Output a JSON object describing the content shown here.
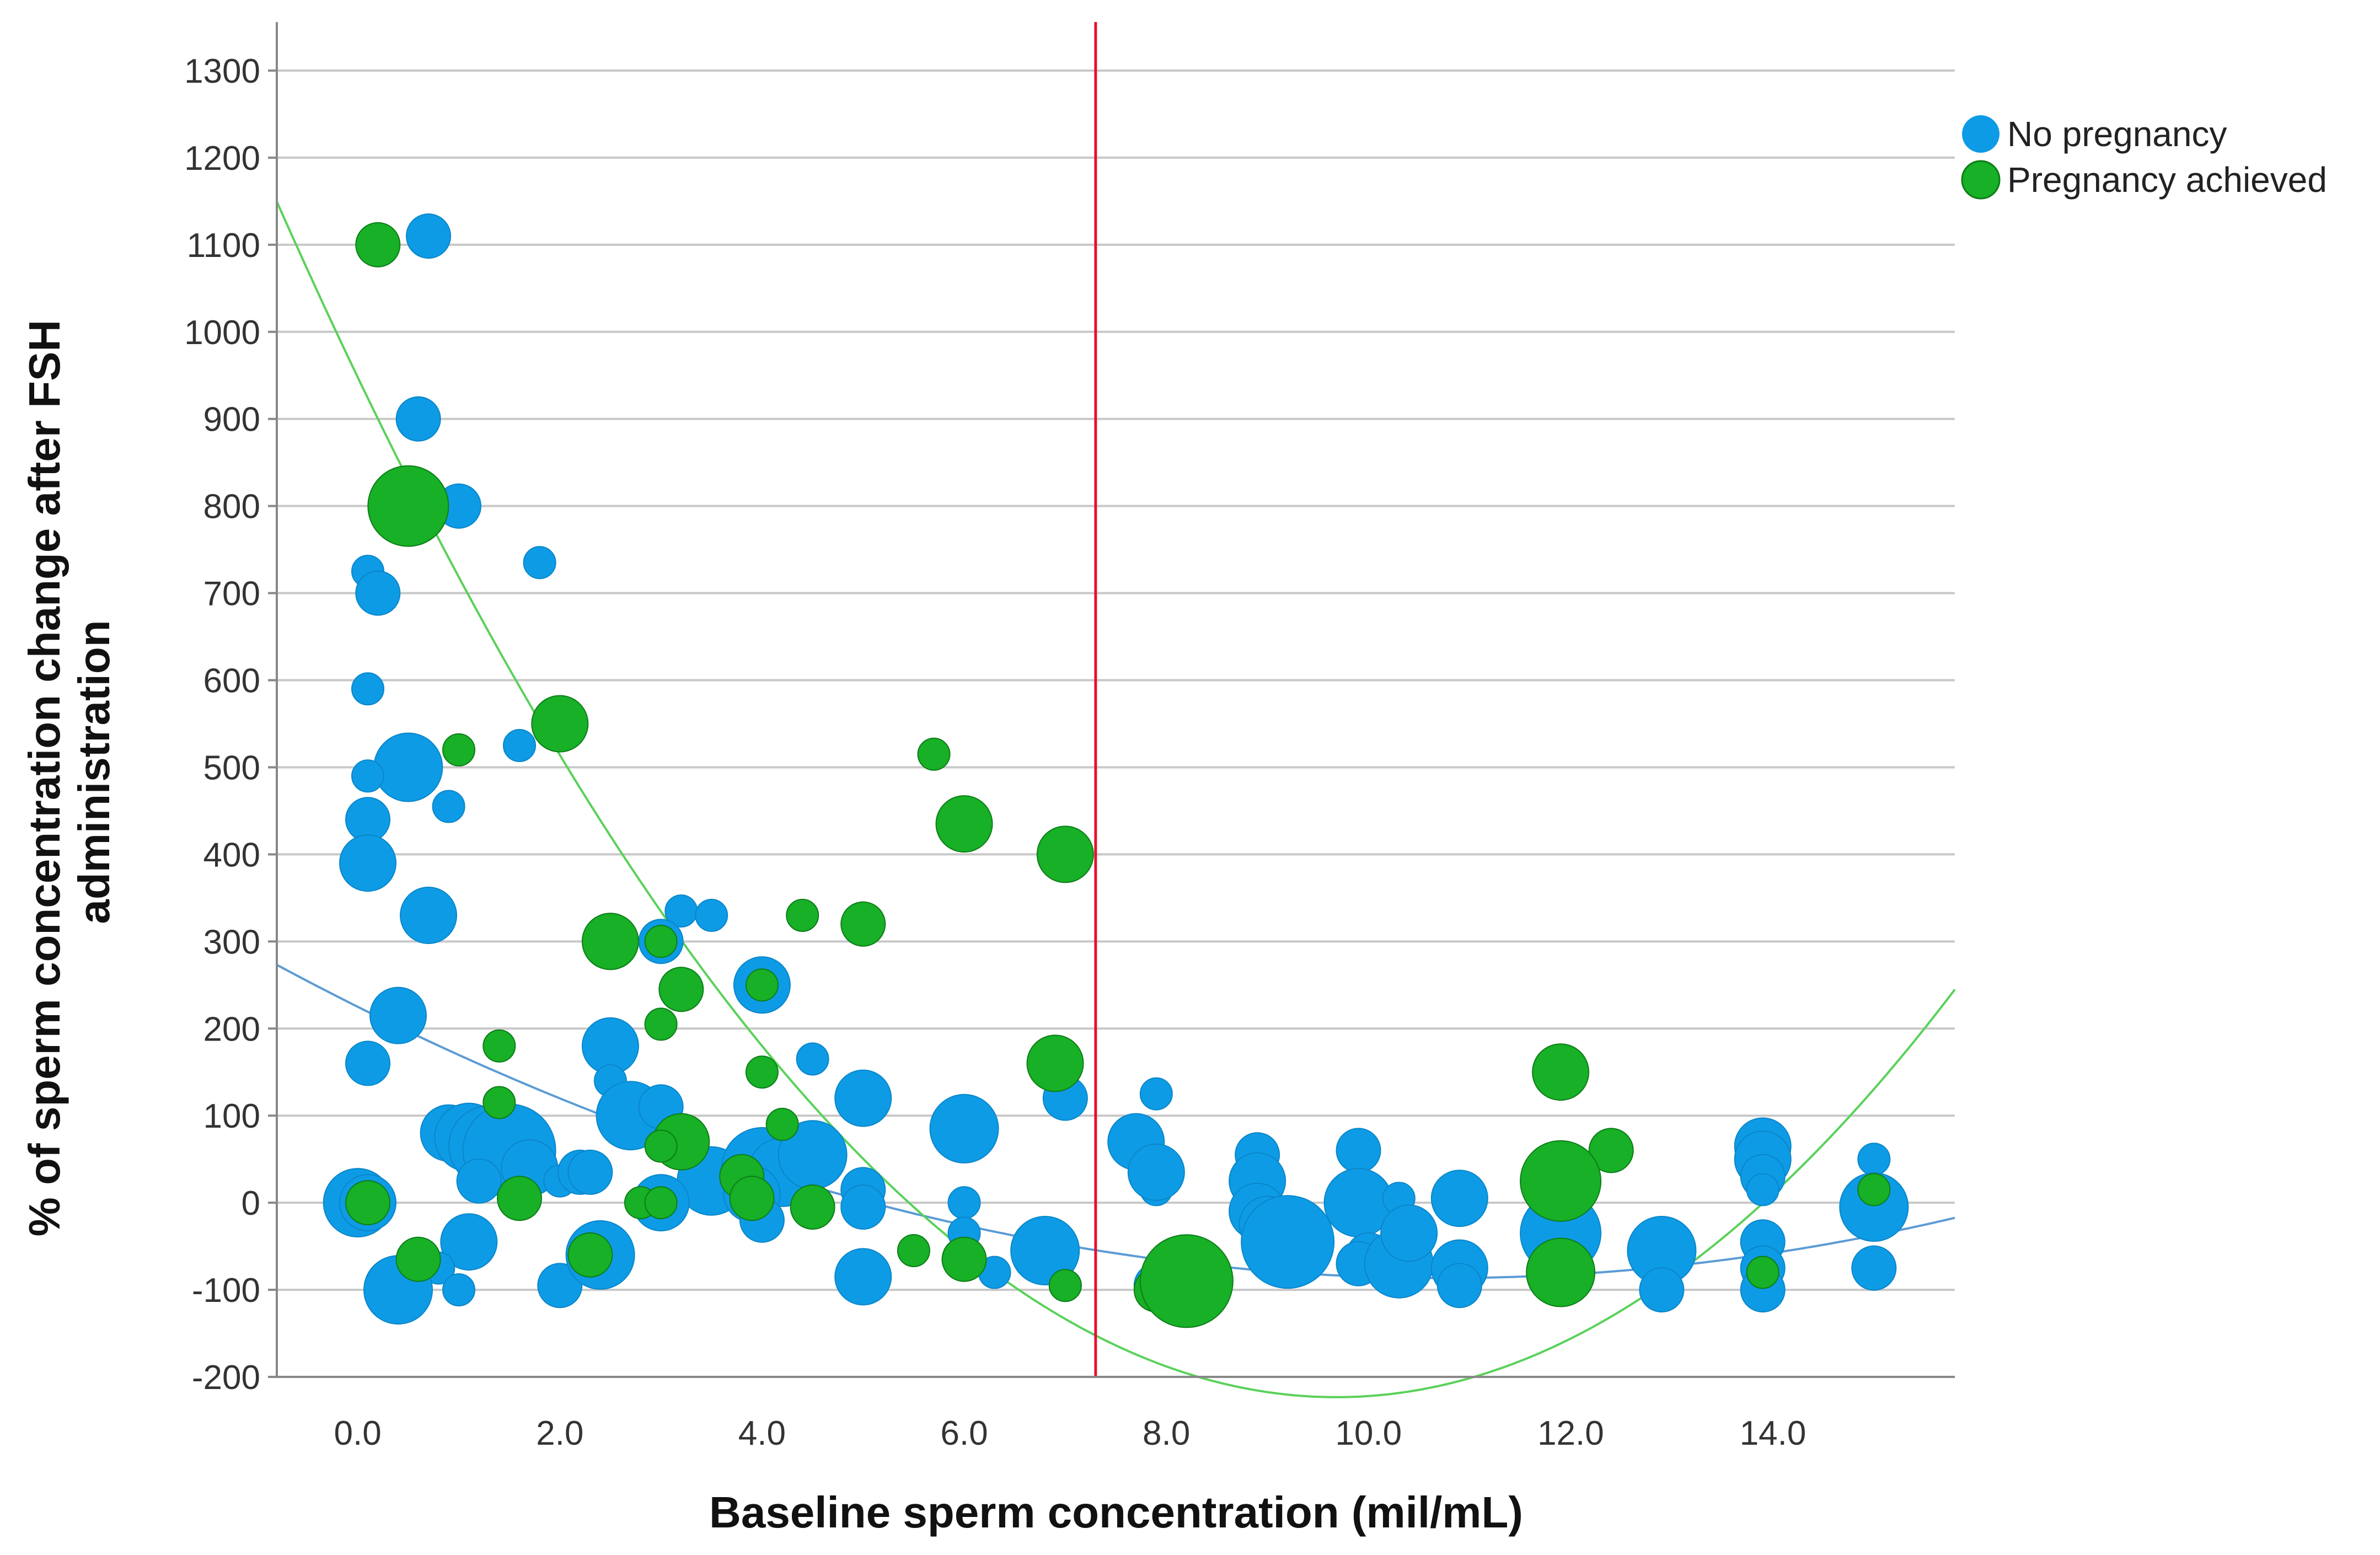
{
  "chart_data": {
    "type": "scatter",
    "title": "",
    "xlabel": "Baseline sperm concentration (mil/mL)",
    "ylabel_lines": [
      "% of sperm concentration change after FSH",
      "administration"
    ],
    "xlim": [
      -0.8,
      15.8
    ],
    "ylim": [
      -200,
      1300
    ],
    "x_ticks": [
      0,
      2,
      4,
      6,
      8,
      10,
      12,
      14
    ],
    "x_tick_labels": [
      "0.0",
      "2.0",
      "4.0",
      "6.0",
      "8.0",
      "10.0",
      "12.0",
      "14.0"
    ],
    "y_ticks": [
      -200,
      -100,
      0,
      100,
      200,
      300,
      400,
      500,
      600,
      700,
      800,
      900,
      1000,
      1100,
      1200,
      1300
    ],
    "y_tick_labels": [
      "-200",
      "-100",
      "0",
      "100",
      "200",
      "300",
      "400",
      "500",
      "600",
      "700",
      "800",
      "900",
      "1000",
      "1100",
      "1200",
      "1300"
    ],
    "grid": "horizontal",
    "legend_position": "top-right",
    "threshold_line": {
      "x": 7.3,
      "color": "#e8102e"
    },
    "series": [
      {
        "name": "No pregnancy",
        "color": "#0e9be6",
        "points": [
          [
            0.7,
            1110,
            2
          ],
          [
            0.6,
            900,
            2
          ],
          [
            1.0,
            800,
            2
          ],
          [
            0.1,
            725,
            1
          ],
          [
            0.2,
            700,
            2
          ],
          [
            1.8,
            735,
            1
          ],
          [
            0.1,
            590,
            1
          ],
          [
            0.5,
            500,
            4
          ],
          [
            0.1,
            490,
            1
          ],
          [
            1.6,
            525,
            1
          ],
          [
            0.9,
            455,
            1
          ],
          [
            0.1,
            440,
            2
          ],
          [
            0.1,
            390,
            3
          ],
          [
            0.7,
            330,
            3
          ],
          [
            3.2,
            335,
            1
          ],
          [
            3.5,
            330,
            1
          ],
          [
            3.0,
            300,
            2
          ],
          [
            4.0,
            250,
            3
          ],
          [
            0.4,
            215,
            3
          ],
          [
            2.5,
            180,
            3
          ],
          [
            0.1,
            160,
            2
          ],
          [
            4.5,
            165,
            1
          ],
          [
            2.5,
            140,
            1
          ],
          [
            2.7,
            100,
            4
          ],
          [
            3.0,
            110,
            2
          ],
          [
            5.0,
            120,
            3
          ],
          [
            6.0,
            85,
            4
          ],
          [
            7.0,
            120,
            2
          ],
          [
            0.9,
            80,
            3
          ],
          [
            1.1,
            75,
            4
          ],
          [
            1.3,
            65,
            5
          ],
          [
            1.5,
            60,
            6
          ],
          [
            1.7,
            40,
            3
          ],
          [
            1.2,
            25,
            2
          ],
          [
            2.0,
            25,
            1
          ],
          [
            2.2,
            35,
            2
          ],
          [
            2.3,
            35,
            2
          ],
          [
            3.5,
            25,
            4
          ],
          [
            4.0,
            40,
            5
          ],
          [
            4.2,
            35,
            4
          ],
          [
            4.5,
            55,
            4
          ],
          [
            3.9,
            10,
            3
          ],
          [
            3.0,
            0,
            3
          ],
          [
            4.0,
            -20,
            2
          ],
          [
            5.0,
            15,
            2
          ],
          [
            5.0,
            -5,
            2
          ],
          [
            6.0,
            0,
            1
          ],
          [
            0.0,
            0,
            4
          ],
          [
            0.1,
            0,
            3
          ],
          [
            1.1,
            -45,
            3
          ],
          [
            0.8,
            -75,
            1
          ],
          [
            1.0,
            -100,
            1
          ],
          [
            0.4,
            -100,
            4
          ],
          [
            2.0,
            -95,
            2
          ],
          [
            2.4,
            -60,
            4
          ],
          [
            5.0,
            -85,
            3
          ],
          [
            6.0,
            -35,
            1
          ],
          [
            6.3,
            -80,
            1
          ],
          [
            6.8,
            -55,
            4
          ],
          [
            7.0,
            -95,
            1
          ],
          [
            7.7,
            70,
            3
          ],
          [
            7.9,
            15,
            1
          ],
          [
            7.9,
            35,
            3
          ],
          [
            7.9,
            125,
            1
          ],
          [
            8.9,
            55,
            2
          ],
          [
            8.9,
            25,
            3
          ],
          [
            8.9,
            -10,
            3
          ],
          [
            9.0,
            -25,
            3
          ],
          [
            9.2,
            -45,
            6
          ],
          [
            9.9,
            60,
            2
          ],
          [
            9.9,
            0,
            4
          ],
          [
            10.0,
            -60,
            2
          ],
          [
            9.9,
            -70,
            2
          ],
          [
            10.3,
            -70,
            4
          ],
          [
            10.3,
            5,
            1
          ],
          [
            10.4,
            -35,
            3
          ],
          [
            10.9,
            5,
            3
          ],
          [
            10.9,
            -75,
            3
          ],
          [
            10.9,
            -95,
            2
          ],
          [
            11.9,
            -35,
            5
          ],
          [
            12.9,
            -55,
            4
          ],
          [
            12.9,
            -100,
            2
          ],
          [
            13.9,
            65,
            3
          ],
          [
            13.9,
            50,
            3
          ],
          [
            13.9,
            30,
            2
          ],
          [
            13.9,
            15,
            1
          ],
          [
            13.9,
            -45,
            2
          ],
          [
            13.9,
            -75,
            2
          ],
          [
            13.9,
            -100,
            2
          ],
          [
            15.0,
            50,
            1
          ],
          [
            15.0,
            5,
            2
          ],
          [
            15.0,
            -5,
            4
          ],
          [
            15.0,
            -75,
            2
          ],
          [
            7.9,
            -95,
            2
          ]
        ]
      },
      {
        "name": "Pregnancy achieved",
        "color": "#17b026",
        "points": [
          [
            0.2,
            1100,
            2
          ],
          [
            0.5,
            800,
            5
          ],
          [
            2.0,
            550,
            3
          ],
          [
            1.0,
            520,
            1
          ],
          [
            5.7,
            515,
            1
          ],
          [
            6.0,
            435,
            3
          ],
          [
            7.0,
            400,
            3
          ],
          [
            5.0,
            320,
            2
          ],
          [
            4.4,
            330,
            1
          ],
          [
            2.5,
            300,
            3
          ],
          [
            3.0,
            300,
            1
          ],
          [
            3.2,
            245,
            2
          ],
          [
            4.0,
            250,
            1
          ],
          [
            3.0,
            205,
            1
          ],
          [
            1.4,
            180,
            1
          ],
          [
            6.9,
            160,
            3
          ],
          [
            4.0,
            150,
            1
          ],
          [
            1.4,
            115,
            1
          ],
          [
            4.2,
            90,
            1
          ],
          [
            3.2,
            70,
            3
          ],
          [
            3.0,
            65,
            1
          ],
          [
            3.8,
            30,
            2
          ],
          [
            1.6,
            5,
            2
          ],
          [
            2.8,
            0,
            1
          ],
          [
            3.0,
            0,
            1
          ],
          [
            3.9,
            5,
            2
          ],
          [
            4.5,
            -5,
            2
          ],
          [
            0.1,
            0,
            2
          ],
          [
            0.6,
            -65,
            2
          ],
          [
            2.3,
            -60,
            2
          ],
          [
            5.5,
            -55,
            1
          ],
          [
            6.0,
            -65,
            2
          ],
          [
            7.0,
            -95,
            1
          ],
          [
            7.9,
            -100,
            2
          ],
          [
            8.2,
            -90,
            6
          ],
          [
            11.9,
            150,
            3
          ],
          [
            12.4,
            60,
            2
          ],
          [
            11.9,
            25,
            5
          ],
          [
            11.9,
            -80,
            4
          ],
          [
            13.9,
            -80,
            1
          ],
          [
            15.0,
            15,
            1
          ]
        ]
      }
    ],
    "fit_curves": [
      {
        "series": "No pregnancy",
        "type": "quadratic",
        "coefficients": [
          225.0,
          -58.0,
          2.7
        ],
        "color": "#5b9bd5"
      },
      {
        "series": "Pregnancy achieved",
        "type": "quadratic",
        "coefficients": [
          948.0,
          -242.0,
          12.5
        ],
        "color": "#5ad15a"
      }
    ]
  }
}
